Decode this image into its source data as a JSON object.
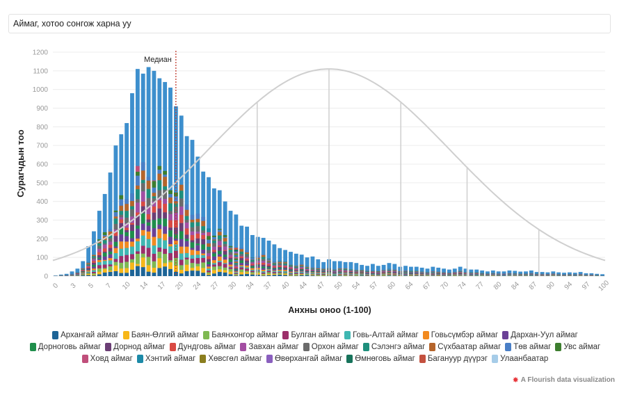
{
  "controls": {
    "select_label": "Аймаг, хотоо сонгож харна уу"
  },
  "credit": {
    "text": "A Flourish data visualization",
    "icon": "flourish-logo-icon"
  },
  "colors": {
    "total": "#3d8fcd",
    "curve": "#cfcfcf",
    "median": "#c0392b",
    "grid": "#ececec",
    "axis_text": "#999999"
  },
  "chart_data": {
    "type": "bar",
    "stacked": true,
    "xlabel": "Анхны оноо (1-100)",
    "ylabel": "Сурагчдын тоо",
    "xlim": [
      0,
      100
    ],
    "ylim": [
      0,
      1200
    ],
    "yticks": [
      0,
      100,
      200,
      300,
      400,
      500,
      600,
      700,
      800,
      900,
      1000,
      1100,
      1200
    ],
    "xtick_labels": [
      "0",
      "3",
      "5",
      "7",
      "10",
      "14",
      "17",
      "20",
      "24",
      "27",
      "30",
      "34",
      "37",
      "40",
      "44",
      "47",
      "50",
      "54",
      "57",
      "60",
      "64",
      "67",
      "70",
      "74",
      "77",
      "80",
      "84",
      "87",
      "90",
      "94",
      "97",
      "100"
    ],
    "grid": true,
    "median": {
      "label": "Медиан",
      "x": 22
    },
    "totals": [
      3,
      8,
      12,
      25,
      40,
      80,
      160,
      240,
      350,
      440,
      555,
      700,
      760,
      820,
      980,
      1110,
      1085,
      1120,
      1100,
      1060,
      1040,
      1010,
      910,
      860,
      750,
      730,
      640,
      560,
      530,
      470,
      460,
      400,
      350,
      330,
      270,
      265,
      220,
      210,
      205,
      190,
      170,
      150,
      140,
      130,
      120,
      115,
      100,
      105,
      90,
      75,
      90,
      80,
      80,
      75,
      75,
      70,
      60,
      55,
      65,
      55,
      60,
      70,
      65,
      50,
      55,
      50,
      50,
      45,
      40,
      50,
      45,
      40,
      35,
      40,
      50,
      40,
      35,
      35,
      30,
      25,
      30,
      25,
      25,
      30,
      28,
      24,
      25,
      30,
      22,
      22,
      20,
      25,
      20,
      18,
      20,
      18,
      22,
      15,
      15,
      12,
      10
    ],
    "bell_curve": {
      "mean": 50,
      "sd": 22,
      "peak": 1110
    },
    "curve_markers_x": [
      37,
      50,
      63,
      75,
      88
    ],
    "legend": [
      {
        "name": "Архангай аймаг",
        "color": "#1d6496"
      },
      {
        "name": "Баян-Өлгий аймаг",
        "color": "#f7b719"
      },
      {
        "name": "Баянхонгор аймаг",
        "color": "#7fb952"
      },
      {
        "name": "Булган аймаг",
        "color": "#9c2f6a"
      },
      {
        "name": "Говь-Алтай аймаг",
        "color": "#3fb7b2"
      },
      {
        "name": "Говьсүмбэр аймаг",
        "color": "#f28a1f"
      },
      {
        "name": "Дархан-Уул аймаг",
        "color": "#6a4096"
      },
      {
        "name": "Дорноговь аймаг",
        "color": "#1f8e4b"
      },
      {
        "name": "Дорнод аймаг",
        "color": "#6b3e75"
      },
      {
        "name": "Дундговь аймаг",
        "color": "#d94a43"
      },
      {
        "name": "Завхан аймаг",
        "color": "#a34ea2"
      },
      {
        "name": "Орхон аймаг",
        "color": "#6b6b6b"
      },
      {
        "name": "Сэлэнгэ аймаг",
        "color": "#1e8f7c"
      },
      {
        "name": "Сүхбаатар аймаг",
        "color": "#b5652b"
      },
      {
        "name": "Төв аймаг",
        "color": "#4a7fc6"
      },
      {
        "name": "Увс аймаг",
        "color": "#3d7e2f"
      },
      {
        "name": "Ховд аймаг",
        "color": "#c04f7b"
      },
      {
        "name": "Хэнтий аймаг",
        "color": "#1c8aa8"
      },
      {
        "name": "Хөвсгөл аймаг",
        "color": "#8b7e1f"
      },
      {
        "name": "Өвөрхангай аймаг",
        "color": "#8a5fbe"
      },
      {
        "name": "Өмнөговь аймаг",
        "color": "#17735b"
      },
      {
        "name": "Багануур дүүрэг",
        "color": "#c4513f"
      },
      {
        "name": "Улаанбаатар",
        "color": "#a6cce8"
      }
    ]
  }
}
